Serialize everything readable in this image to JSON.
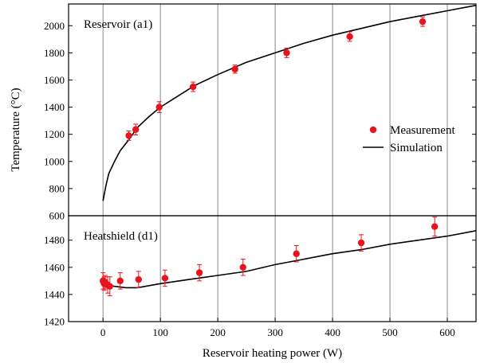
{
  "chart_data": {
    "type": "scatter",
    "xlabel": "Reservoir heating power (W)",
    "ylabel": "Temperature (°C)",
    "xlim": [
      -60,
      650
    ],
    "xticks": [
      0,
      100,
      200,
      300,
      400,
      500,
      600
    ],
    "grid": "vertical lines at x ticks",
    "colors": {
      "measurement": "#e8141c",
      "simulation": "#000000"
    },
    "legend": {
      "placement": "top panel, right",
      "entries": [
        {
          "label": "Measurement",
          "marker": "circle"
        },
        {
          "label": "Simulation",
          "marker": "line"
        }
      ]
    },
    "panels": [
      {
        "label": "Reservoir (a1)",
        "ylim": [
          600,
          2160
        ],
        "yticks": [
          600,
          800,
          1000,
          1200,
          1400,
          1600,
          1800,
          2000
        ],
        "measurement": {
          "x": [
            45,
            57,
            98,
            157,
            230,
            320,
            430,
            557
          ],
          "y": [
            1190,
            1235,
            1400,
            1550,
            1680,
            1800,
            1920,
            2030
          ],
          "err": [
            35,
            40,
            40,
            35,
            30,
            35,
            35,
            35
          ]
        },
        "simulation": {
          "x": [
            0,
            5,
            10,
            20,
            30,
            45,
            60,
            80,
            100,
            130,
            160,
            200,
            250,
            300,
            350,
            400,
            450,
            500,
            550,
            600,
            650
          ],
          "y": [
            710,
            820,
            910,
            1000,
            1080,
            1160,
            1250,
            1330,
            1400,
            1480,
            1560,
            1640,
            1730,
            1800,
            1870,
            1930,
            1980,
            2030,
            2070,
            2110,
            2150
          ]
        }
      },
      {
        "label": "Heatshield (d1)",
        "ylim": [
          1420,
          1498
        ],
        "yticks": [
          1420,
          1440,
          1460,
          1480
        ],
        "measurement": {
          "x": [
            0,
            2,
            4,
            8,
            12,
            30,
            62,
            108,
            168,
            244,
            337,
            450,
            578
          ],
          "y": [
            1450,
            1448,
            1449,
            1447,
            1446,
            1450,
            1451,
            1452,
            1456,
            1460,
            1470,
            1478,
            1490
          ],
          "err": [
            6,
            5,
            5,
            6,
            7,
            6,
            6,
            6,
            6,
            6,
            6,
            6,
            7
          ]
        },
        "simulation": {
          "x": [
            0,
            5,
            10,
            20,
            40,
            60,
            100,
            150,
            200,
            250,
            300,
            350,
            400,
            450,
            500,
            550,
            600,
            650
          ],
          "y": [
            1450,
            1448,
            1447,
            1446,
            1445,
            1445,
            1448,
            1451,
            1454,
            1457,
            1462,
            1466,
            1470,
            1473,
            1477,
            1480,
            1483,
            1487
          ]
        }
      }
    ]
  }
}
